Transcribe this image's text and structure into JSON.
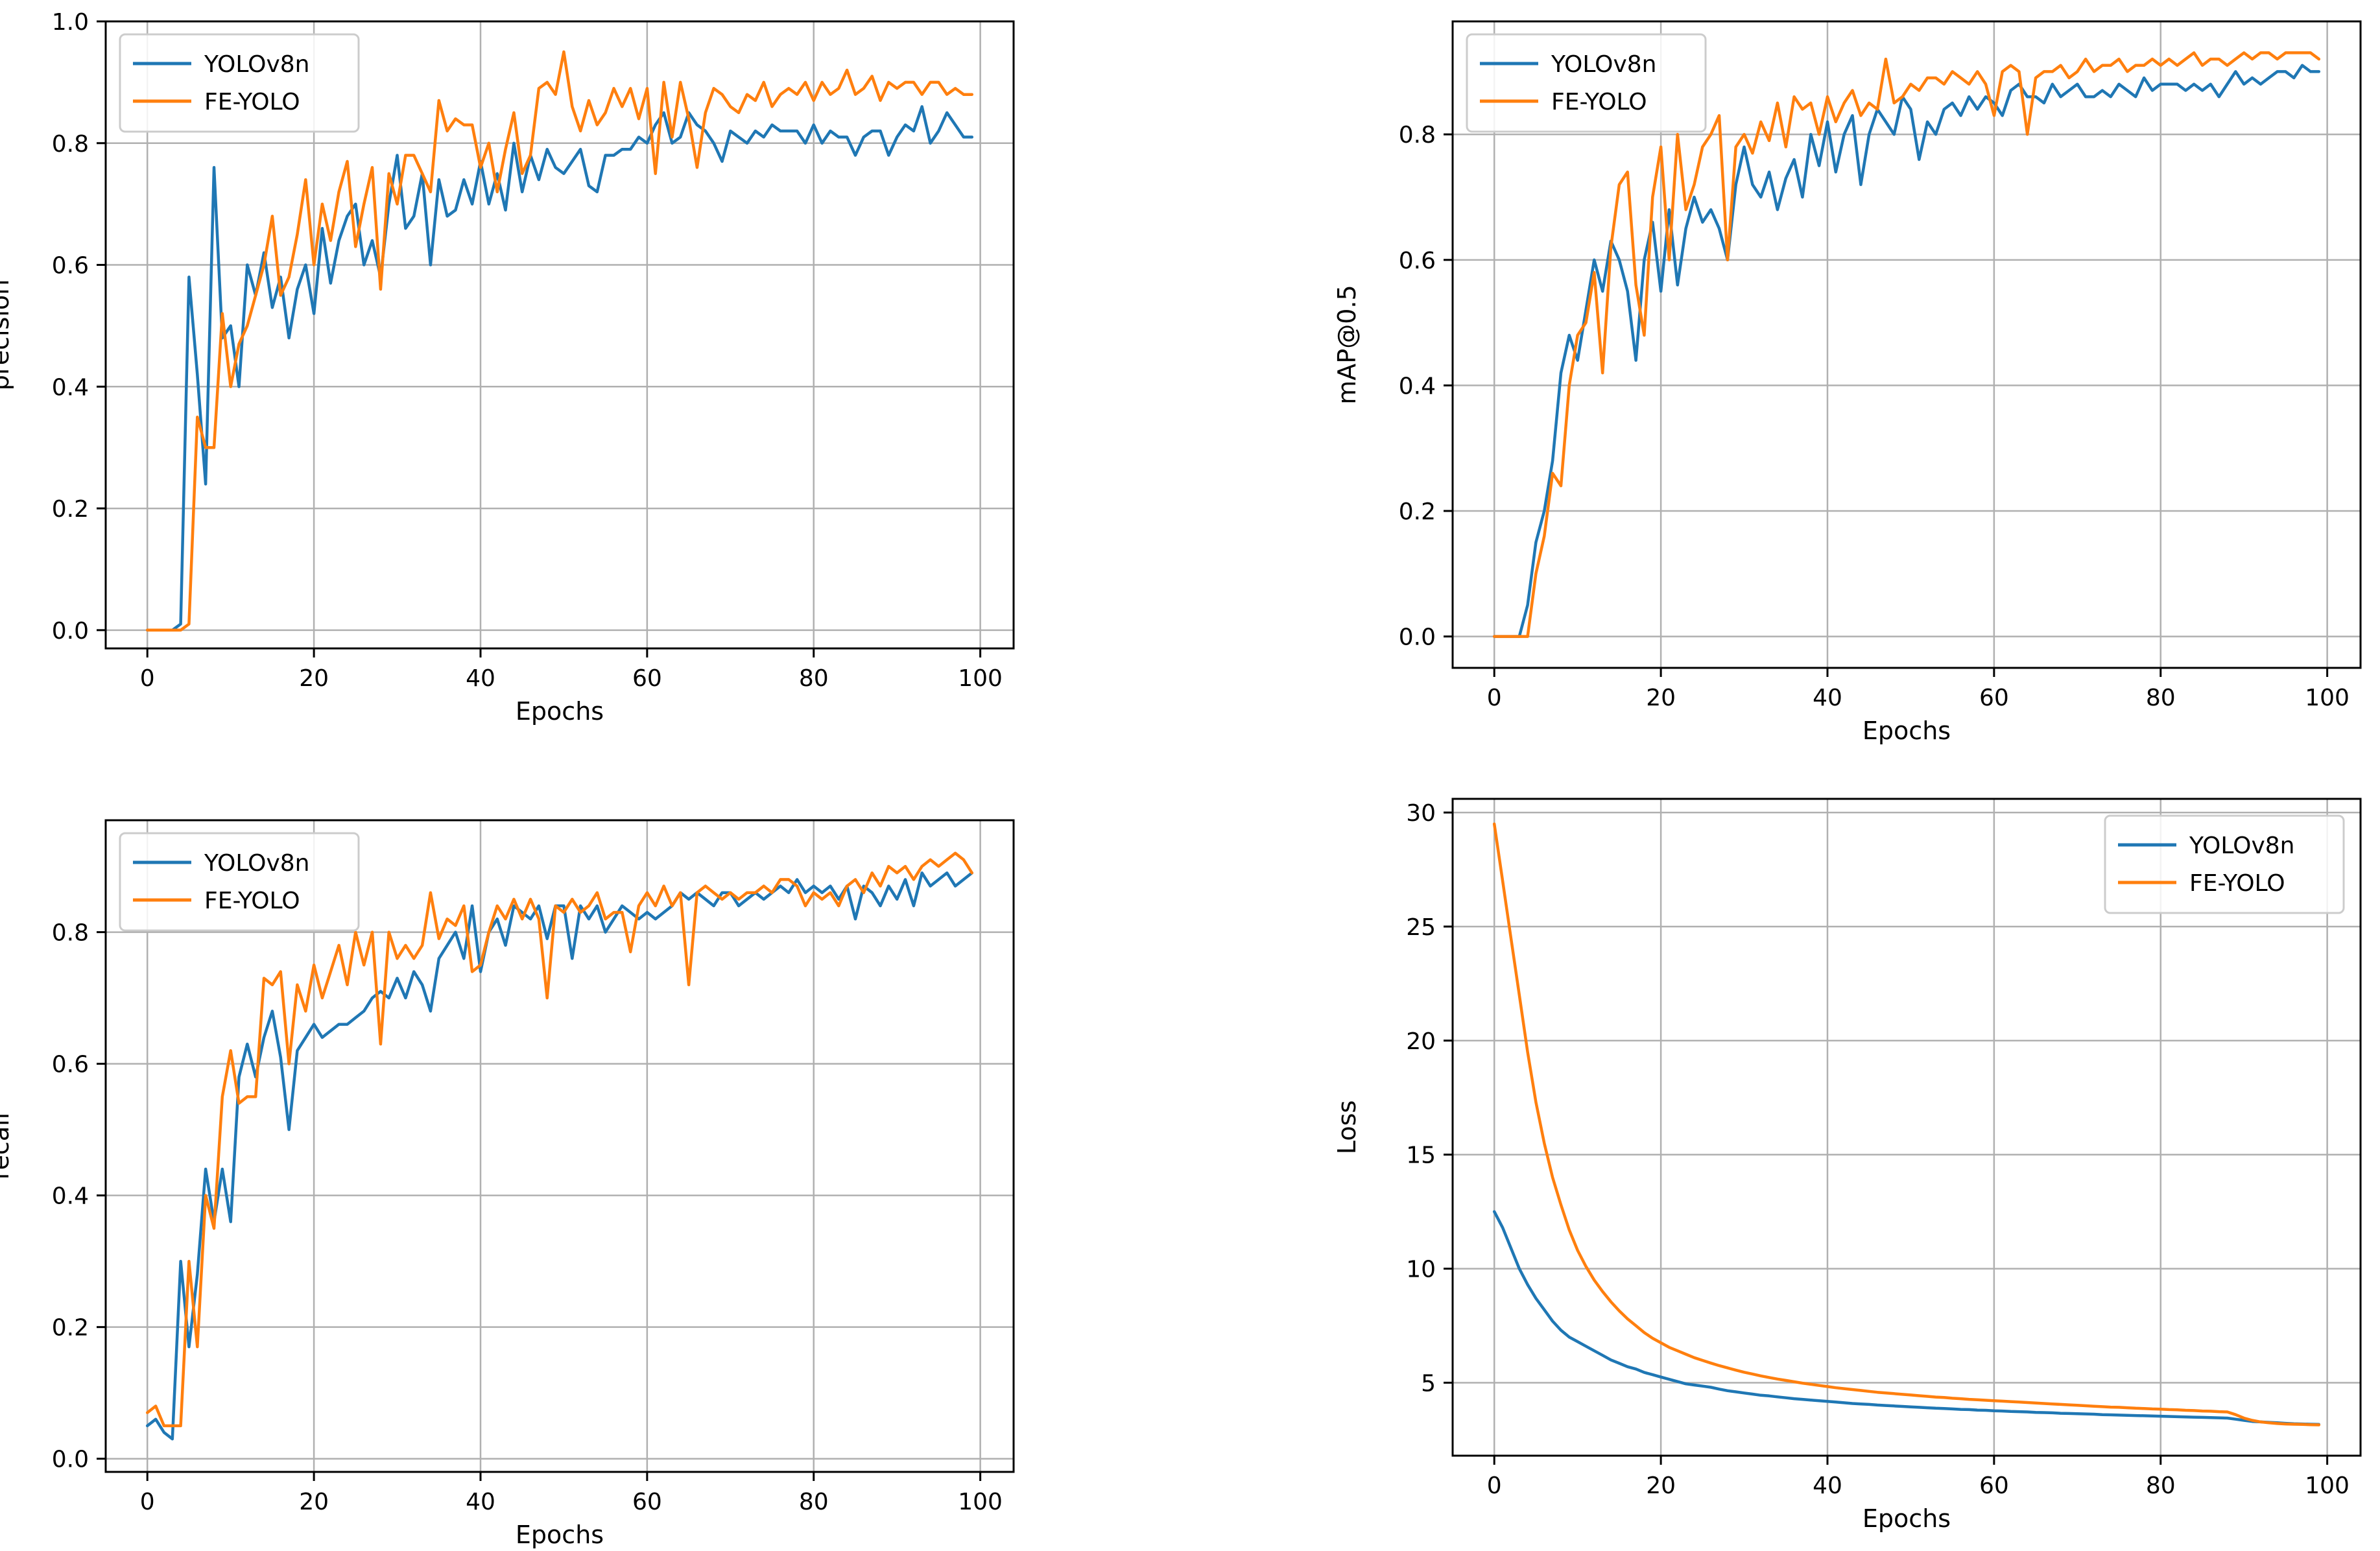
{
  "chart_data": [
    {
      "type": "line",
      "id": "precision",
      "xlabel": "Epochs",
      "ylabel": "precision",
      "xlim": [
        -5,
        104
      ],
      "ylim": [
        -0.03,
        1.0
      ],
      "xticks": [
        0,
        20,
        40,
        60,
        80,
        100
      ],
      "yticks": [
        0.0,
        0.2,
        0.4,
        0.6,
        0.8,
        1.0
      ],
      "ytick_labels": [
        "0.0",
        "0.2",
        "0.4",
        "0.6",
        "0.8",
        "1.0"
      ],
      "grid": true,
      "legend_position": "top-left",
      "x_step": 1,
      "series": [
        {
          "name": "YOLOv8n",
          "color": "#1f77b4",
          "values": [
            0.0,
            0.0,
            0.0,
            0.0,
            0.01,
            0.58,
            0.42,
            0.24,
            0.76,
            0.48,
            0.5,
            0.4,
            0.6,
            0.55,
            0.62,
            0.53,
            0.58,
            0.48,
            0.56,
            0.6,
            0.52,
            0.66,
            0.57,
            0.64,
            0.68,
            0.7,
            0.6,
            0.64,
            0.58,
            0.7,
            0.78,
            0.66,
            0.68,
            0.75,
            0.6,
            0.74,
            0.68,
            0.69,
            0.74,
            0.7,
            0.77,
            0.7,
            0.75,
            0.69,
            0.8,
            0.72,
            0.78,
            0.74,
            0.79,
            0.76,
            0.75,
            0.77,
            0.79,
            0.73,
            0.72,
            0.78,
            0.78,
            0.79,
            0.79,
            0.81,
            0.8,
            0.83,
            0.85,
            0.8,
            0.81,
            0.85,
            0.83,
            0.82,
            0.8,
            0.77,
            0.82,
            0.81,
            0.8,
            0.82,
            0.81,
            0.83,
            0.82,
            0.82,
            0.82,
            0.8,
            0.83,
            0.8,
            0.82,
            0.81,
            0.81,
            0.78,
            0.81,
            0.82,
            0.82,
            0.78,
            0.81,
            0.83,
            0.82,
            0.86,
            0.8,
            0.82,
            0.85,
            0.83,
            0.81,
            0.81
          ]
        },
        {
          "name": "FE-YOLO",
          "color": "#ff7f0e",
          "values": [
            0.0,
            0.0,
            0.0,
            0.0,
            0.0,
            0.01,
            0.35,
            0.3,
            0.3,
            0.52,
            0.4,
            0.47,
            0.5,
            0.55,
            0.6,
            0.68,
            0.55,
            0.58,
            0.65,
            0.74,
            0.6,
            0.7,
            0.64,
            0.72,
            0.77,
            0.63,
            0.7,
            0.76,
            0.56,
            0.75,
            0.7,
            0.78,
            0.78,
            0.75,
            0.72,
            0.87,
            0.82,
            0.84,
            0.83,
            0.83,
            0.76,
            0.8,
            0.72,
            0.79,
            0.85,
            0.75,
            0.78,
            0.89,
            0.9,
            0.88,
            0.95,
            0.86,
            0.82,
            0.87,
            0.83,
            0.85,
            0.89,
            0.86,
            0.89,
            0.84,
            0.89,
            0.75,
            0.9,
            0.81,
            0.9,
            0.84,
            0.76,
            0.85,
            0.89,
            0.88,
            0.86,
            0.85,
            0.88,
            0.87,
            0.9,
            0.86,
            0.88,
            0.89,
            0.88,
            0.9,
            0.87,
            0.9,
            0.88,
            0.89,
            0.92,
            0.88,
            0.89,
            0.91,
            0.87,
            0.9,
            0.89,
            0.9,
            0.9,
            0.88,
            0.9,
            0.9,
            0.88,
            0.89,
            0.88,
            0.88
          ]
        }
      ]
    },
    {
      "type": "line",
      "id": "map50",
      "xlabel": "Epochs",
      "ylabel": "mAP@0.5",
      "xlim": [
        -5,
        104
      ],
      "ylim": [
        -0.05,
        0.98
      ],
      "xticks": [
        0,
        20,
        40,
        60,
        80,
        100
      ],
      "yticks": [
        0.0,
        0.2,
        0.4,
        0.6,
        0.8
      ],
      "ytick_labels": [
        "0.0",
        "0.2",
        "0.4",
        "0.6",
        "0.8"
      ],
      "grid": true,
      "legend_position": "top-left",
      "x_step": 1,
      "series": [
        {
          "name": "YOLOv8n",
          "color": "#1f77b4",
          "values": [
            0.0,
            0.0,
            0.0,
            0.0,
            0.05,
            0.15,
            0.2,
            0.28,
            0.42,
            0.48,
            0.44,
            0.52,
            0.6,
            0.55,
            0.63,
            0.6,
            0.55,
            0.44,
            0.6,
            0.66,
            0.55,
            0.68,
            0.56,
            0.65,
            0.7,
            0.66,
            0.68,
            0.65,
            0.6,
            0.72,
            0.78,
            0.72,
            0.7,
            0.74,
            0.68,
            0.73,
            0.76,
            0.7,
            0.8,
            0.75,
            0.82,
            0.74,
            0.8,
            0.83,
            0.72,
            0.8,
            0.84,
            0.82,
            0.8,
            0.86,
            0.84,
            0.76,
            0.82,
            0.8,
            0.84,
            0.85,
            0.83,
            0.86,
            0.84,
            0.86,
            0.85,
            0.83,
            0.87,
            0.88,
            0.86,
            0.86,
            0.85,
            0.88,
            0.86,
            0.87,
            0.88,
            0.86,
            0.86,
            0.87,
            0.86,
            0.88,
            0.87,
            0.86,
            0.89,
            0.87,
            0.88,
            0.88,
            0.88,
            0.87,
            0.88,
            0.87,
            0.88,
            0.86,
            0.88,
            0.9,
            0.88,
            0.89,
            0.88,
            0.89,
            0.9,
            0.9,
            0.89,
            0.91,
            0.9,
            0.9
          ]
        },
        {
          "name": "FE-YOLO",
          "color": "#ff7f0e",
          "values": [
            0.0,
            0.0,
            0.0,
            0.0,
            0.0,
            0.1,
            0.16,
            0.26,
            0.24,
            0.4,
            0.48,
            0.5,
            0.58,
            0.42,
            0.62,
            0.72,
            0.74,
            0.56,
            0.48,
            0.7,
            0.78,
            0.6,
            0.8,
            0.68,
            0.72,
            0.78,
            0.8,
            0.83,
            0.6,
            0.78,
            0.8,
            0.77,
            0.82,
            0.79,
            0.85,
            0.78,
            0.86,
            0.84,
            0.85,
            0.8,
            0.86,
            0.82,
            0.85,
            0.87,
            0.83,
            0.85,
            0.84,
            0.92,
            0.85,
            0.86,
            0.88,
            0.87,
            0.89,
            0.89,
            0.88,
            0.9,
            0.89,
            0.88,
            0.9,
            0.88,
            0.83,
            0.9,
            0.91,
            0.9,
            0.8,
            0.89,
            0.9,
            0.9,
            0.91,
            0.89,
            0.9,
            0.92,
            0.9,
            0.91,
            0.91,
            0.92,
            0.9,
            0.91,
            0.91,
            0.92,
            0.91,
            0.92,
            0.91,
            0.92,
            0.93,
            0.91,
            0.92,
            0.92,
            0.91,
            0.92,
            0.93,
            0.92,
            0.93,
            0.93,
            0.92,
            0.93,
            0.93,
            0.93,
            0.93,
            0.92
          ]
        }
      ]
    },
    {
      "type": "line",
      "id": "recall",
      "xlabel": "Epochs",
      "ylabel": "recall",
      "xlim": [
        -5,
        104
      ],
      "ylim": [
        -0.02,
        0.97
      ],
      "xticks": [
        0,
        20,
        40,
        60,
        80,
        100
      ],
      "yticks": [
        0.0,
        0.2,
        0.4,
        0.6,
        0.8
      ],
      "ytick_labels": [
        "0.0",
        "0.2",
        "0.4",
        "0.6",
        "0.8"
      ],
      "grid": true,
      "legend_position": "top-left",
      "x_step": 1,
      "series": [
        {
          "name": "YOLOv8n",
          "color": "#1f77b4",
          "values": [
            0.05,
            0.06,
            0.04,
            0.03,
            0.3,
            0.17,
            0.28,
            0.44,
            0.36,
            0.44,
            0.36,
            0.58,
            0.63,
            0.58,
            0.64,
            0.68,
            0.61,
            0.5,
            0.62,
            0.64,
            0.66,
            0.64,
            0.65,
            0.66,
            0.66,
            0.67,
            0.68,
            0.7,
            0.71,
            0.7,
            0.73,
            0.7,
            0.74,
            0.72,
            0.68,
            0.76,
            0.78,
            0.8,
            0.76,
            0.84,
            0.74,
            0.8,
            0.82,
            0.78,
            0.84,
            0.83,
            0.82,
            0.84,
            0.79,
            0.84,
            0.84,
            0.76,
            0.84,
            0.82,
            0.84,
            0.8,
            0.82,
            0.84,
            0.83,
            0.82,
            0.83,
            0.82,
            0.83,
            0.84,
            0.86,
            0.85,
            0.86,
            0.85,
            0.84,
            0.86,
            0.86,
            0.84,
            0.85,
            0.86,
            0.85,
            0.86,
            0.87,
            0.86,
            0.88,
            0.86,
            0.87,
            0.86,
            0.87,
            0.85,
            0.87,
            0.82,
            0.87,
            0.86,
            0.84,
            0.87,
            0.85,
            0.88,
            0.84,
            0.89,
            0.87,
            0.88,
            0.89,
            0.87,
            0.88,
            0.89
          ]
        },
        {
          "name": "FE-YOLO",
          "color": "#ff7f0e",
          "values": [
            0.07,
            0.08,
            0.05,
            0.05,
            0.05,
            0.3,
            0.17,
            0.4,
            0.35,
            0.55,
            0.62,
            0.54,
            0.55,
            0.55,
            0.73,
            0.72,
            0.74,
            0.6,
            0.72,
            0.68,
            0.75,
            0.7,
            0.74,
            0.78,
            0.72,
            0.8,
            0.75,
            0.8,
            0.63,
            0.8,
            0.76,
            0.78,
            0.76,
            0.78,
            0.86,
            0.79,
            0.82,
            0.81,
            0.84,
            0.74,
            0.75,
            0.8,
            0.84,
            0.82,
            0.85,
            0.82,
            0.85,
            0.82,
            0.7,
            0.84,
            0.83,
            0.85,
            0.83,
            0.84,
            0.86,
            0.82,
            0.83,
            0.83,
            0.77,
            0.84,
            0.86,
            0.84,
            0.87,
            0.84,
            0.86,
            0.72,
            0.86,
            0.87,
            0.86,
            0.85,
            0.86,
            0.85,
            0.86,
            0.86,
            0.87,
            0.86,
            0.88,
            0.88,
            0.87,
            0.84,
            0.86,
            0.85,
            0.86,
            0.84,
            0.87,
            0.88,
            0.86,
            0.89,
            0.87,
            0.9,
            0.89,
            0.9,
            0.88,
            0.9,
            0.91,
            0.9,
            0.91,
            0.92,
            0.91,
            0.89
          ]
        }
      ]
    },
    {
      "type": "line",
      "id": "loss",
      "xlabel": "Epochs",
      "ylabel": "Loss",
      "xlim": [
        -5,
        104
      ],
      "ylim": [
        1.8,
        30.6
      ],
      "xticks": [
        0,
        20,
        40,
        60,
        80,
        100
      ],
      "yticks": [
        5,
        10,
        15,
        20,
        25,
        30
      ],
      "ytick_labels": [
        "5",
        "10",
        "15",
        "20",
        "25",
        "30"
      ],
      "grid": true,
      "legend_position": "top-right",
      "x_step": 1,
      "series": [
        {
          "name": "YOLOv8n",
          "color": "#1f77b4",
          "values": [
            12.5,
            11.8,
            10.9,
            10.0,
            9.3,
            8.7,
            8.2,
            7.7,
            7.3,
            7.0,
            6.8,
            6.6,
            6.4,
            6.2,
            6.0,
            5.85,
            5.7,
            5.6,
            5.45,
            5.35,
            5.25,
            5.15,
            5.05,
            4.95,
            4.9,
            4.85,
            4.8,
            4.72,
            4.65,
            4.6,
            4.55,
            4.5,
            4.45,
            4.42,
            4.38,
            4.34,
            4.3,
            4.27,
            4.24,
            4.21,
            4.18,
            4.15,
            4.12,
            4.09,
            4.07,
            4.05,
            4.02,
            4.0,
            3.98,
            3.96,
            3.94,
            3.92,
            3.9,
            3.88,
            3.87,
            3.85,
            3.83,
            3.82,
            3.8,
            3.79,
            3.77,
            3.76,
            3.74,
            3.73,
            3.72,
            3.7,
            3.69,
            3.68,
            3.66,
            3.65,
            3.64,
            3.63,
            3.62,
            3.6,
            3.59,
            3.58,
            3.57,
            3.56,
            3.55,
            3.54,
            3.53,
            3.52,
            3.51,
            3.5,
            3.49,
            3.48,
            3.47,
            3.46,
            3.45,
            3.4,
            3.35,
            3.3,
            3.28,
            3.26,
            3.24,
            3.22,
            3.2,
            3.19,
            3.18,
            3.17
          ]
        },
        {
          "name": "FE-YOLO",
          "color": "#ff7f0e",
          "values": [
            29.5,
            27.0,
            24.5,
            22.0,
            19.5,
            17.3,
            15.5,
            14.0,
            12.8,
            11.7,
            10.8,
            10.1,
            9.5,
            9.0,
            8.55,
            8.15,
            7.8,
            7.5,
            7.2,
            6.95,
            6.75,
            6.55,
            6.4,
            6.25,
            6.1,
            5.98,
            5.86,
            5.75,
            5.65,
            5.55,
            5.46,
            5.38,
            5.3,
            5.23,
            5.16,
            5.1,
            5.04,
            4.98,
            4.93,
            4.88,
            4.83,
            4.78,
            4.74,
            4.7,
            4.66,
            4.62,
            4.58,
            4.55,
            4.52,
            4.49,
            4.46,
            4.43,
            4.4,
            4.37,
            4.35,
            4.32,
            4.3,
            4.27,
            4.25,
            4.23,
            4.21,
            4.19,
            4.17,
            4.15,
            4.13,
            4.11,
            4.09,
            4.07,
            4.05,
            4.03,
            4.01,
            3.99,
            3.97,
            3.95,
            3.93,
            3.92,
            3.9,
            3.88,
            3.87,
            3.85,
            3.84,
            3.82,
            3.81,
            3.79,
            3.78,
            3.76,
            3.75,
            3.73,
            3.72,
            3.6,
            3.45,
            3.35,
            3.28,
            3.24,
            3.21,
            3.19,
            3.18,
            3.17,
            3.16,
            3.15
          ]
        }
      ]
    }
  ]
}
